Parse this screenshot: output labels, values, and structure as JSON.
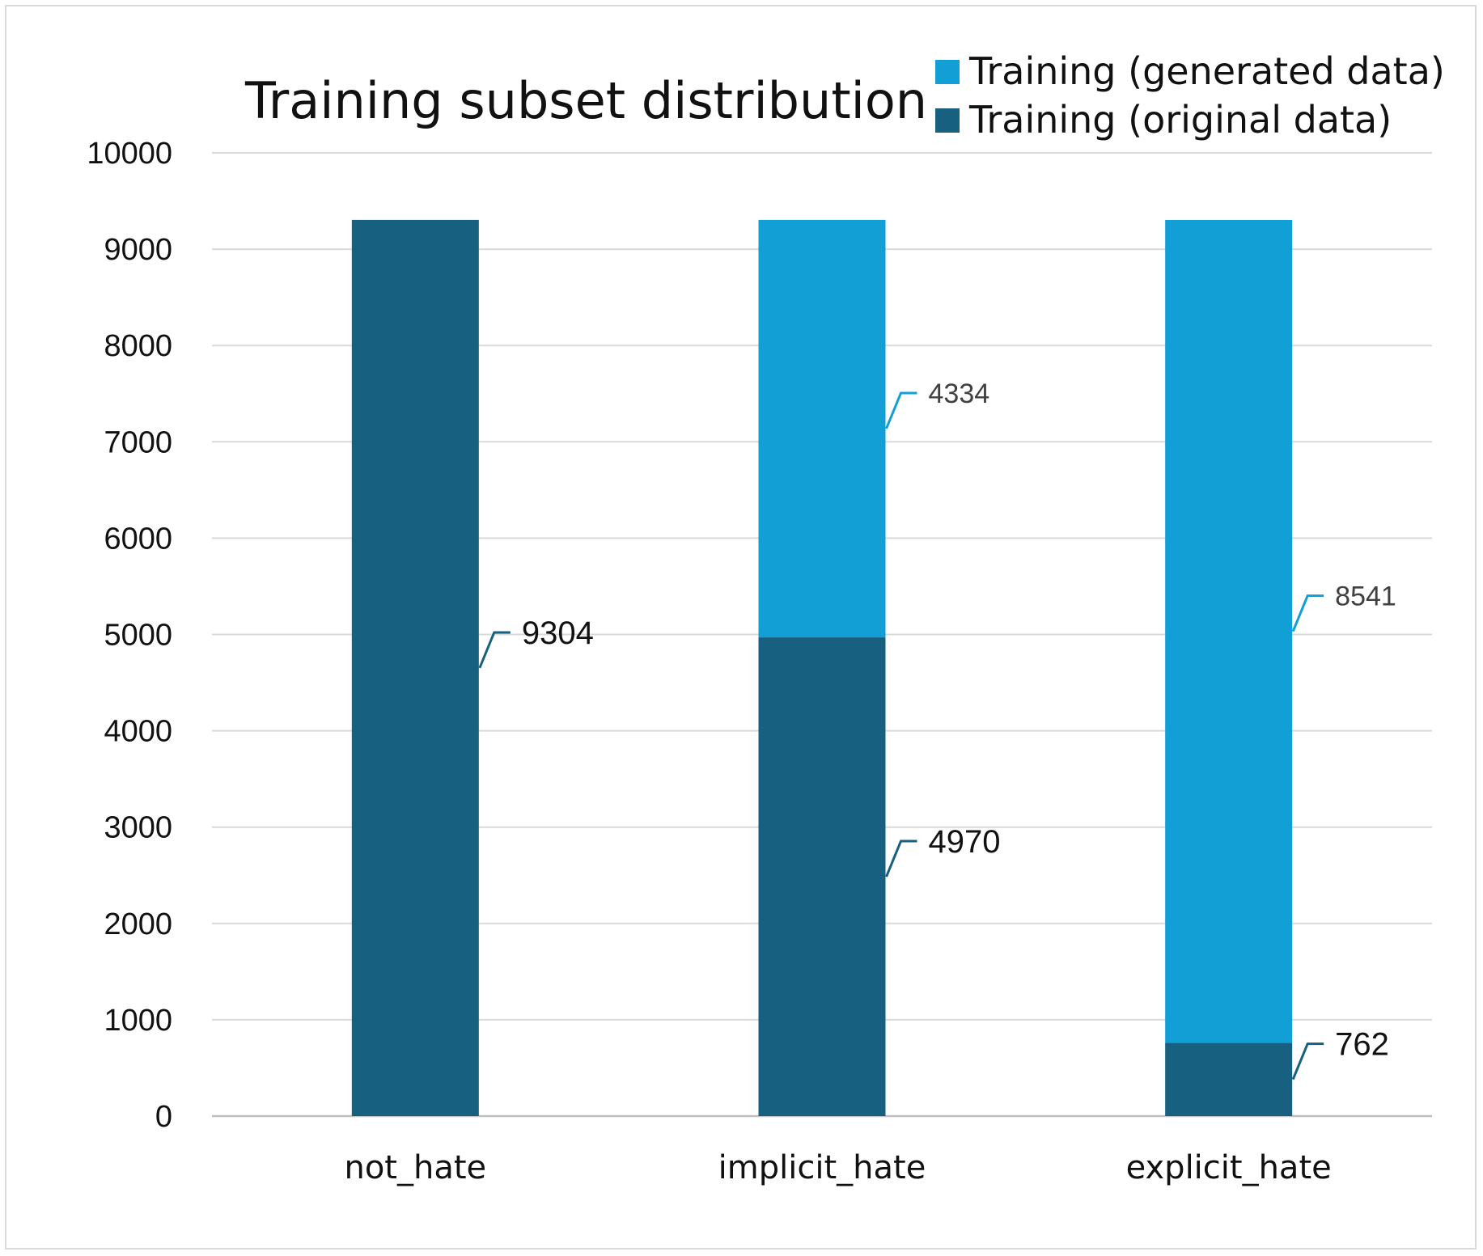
{
  "chart_data": {
    "type": "bar",
    "stacked": true,
    "title": "Training subset distribution",
    "categories": [
      "not_hate",
      "implicit_hate",
      "explicit_hate"
    ],
    "series": [
      {
        "name": "Training (original data)",
        "values": [
          9304,
          4970,
          762
        ],
        "color": "#17607f"
      },
      {
        "name": "Training (generated data)",
        "values": [
          0,
          4334,
          8541
        ],
        "color": "#119fd6"
      }
    ],
    "data_labels": [
      {
        "category": "not_hate",
        "series": "Training (original data)",
        "text": "9304"
      },
      {
        "category": "implicit_hate",
        "series": "Training (generated data)",
        "text": "4334"
      },
      {
        "category": "implicit_hate",
        "series": "Training (original data)",
        "text": "4970"
      },
      {
        "category": "explicit_hate",
        "series": "Training (generated data)",
        "text": "8541"
      },
      {
        "category": "explicit_hate",
        "series": "Training (original data)",
        "text": "762"
      }
    ],
    "yticks": [
      0,
      1000,
      2000,
      3000,
      4000,
      5000,
      6000,
      7000,
      8000,
      9000,
      10000
    ],
    "ylim": [
      0,
      10000
    ],
    "xlabel": "",
    "ylabel": "",
    "grid": true,
    "legend_position": "top-right",
    "legend_order": [
      "Training (generated data)",
      "Training (original data)"
    ]
  }
}
